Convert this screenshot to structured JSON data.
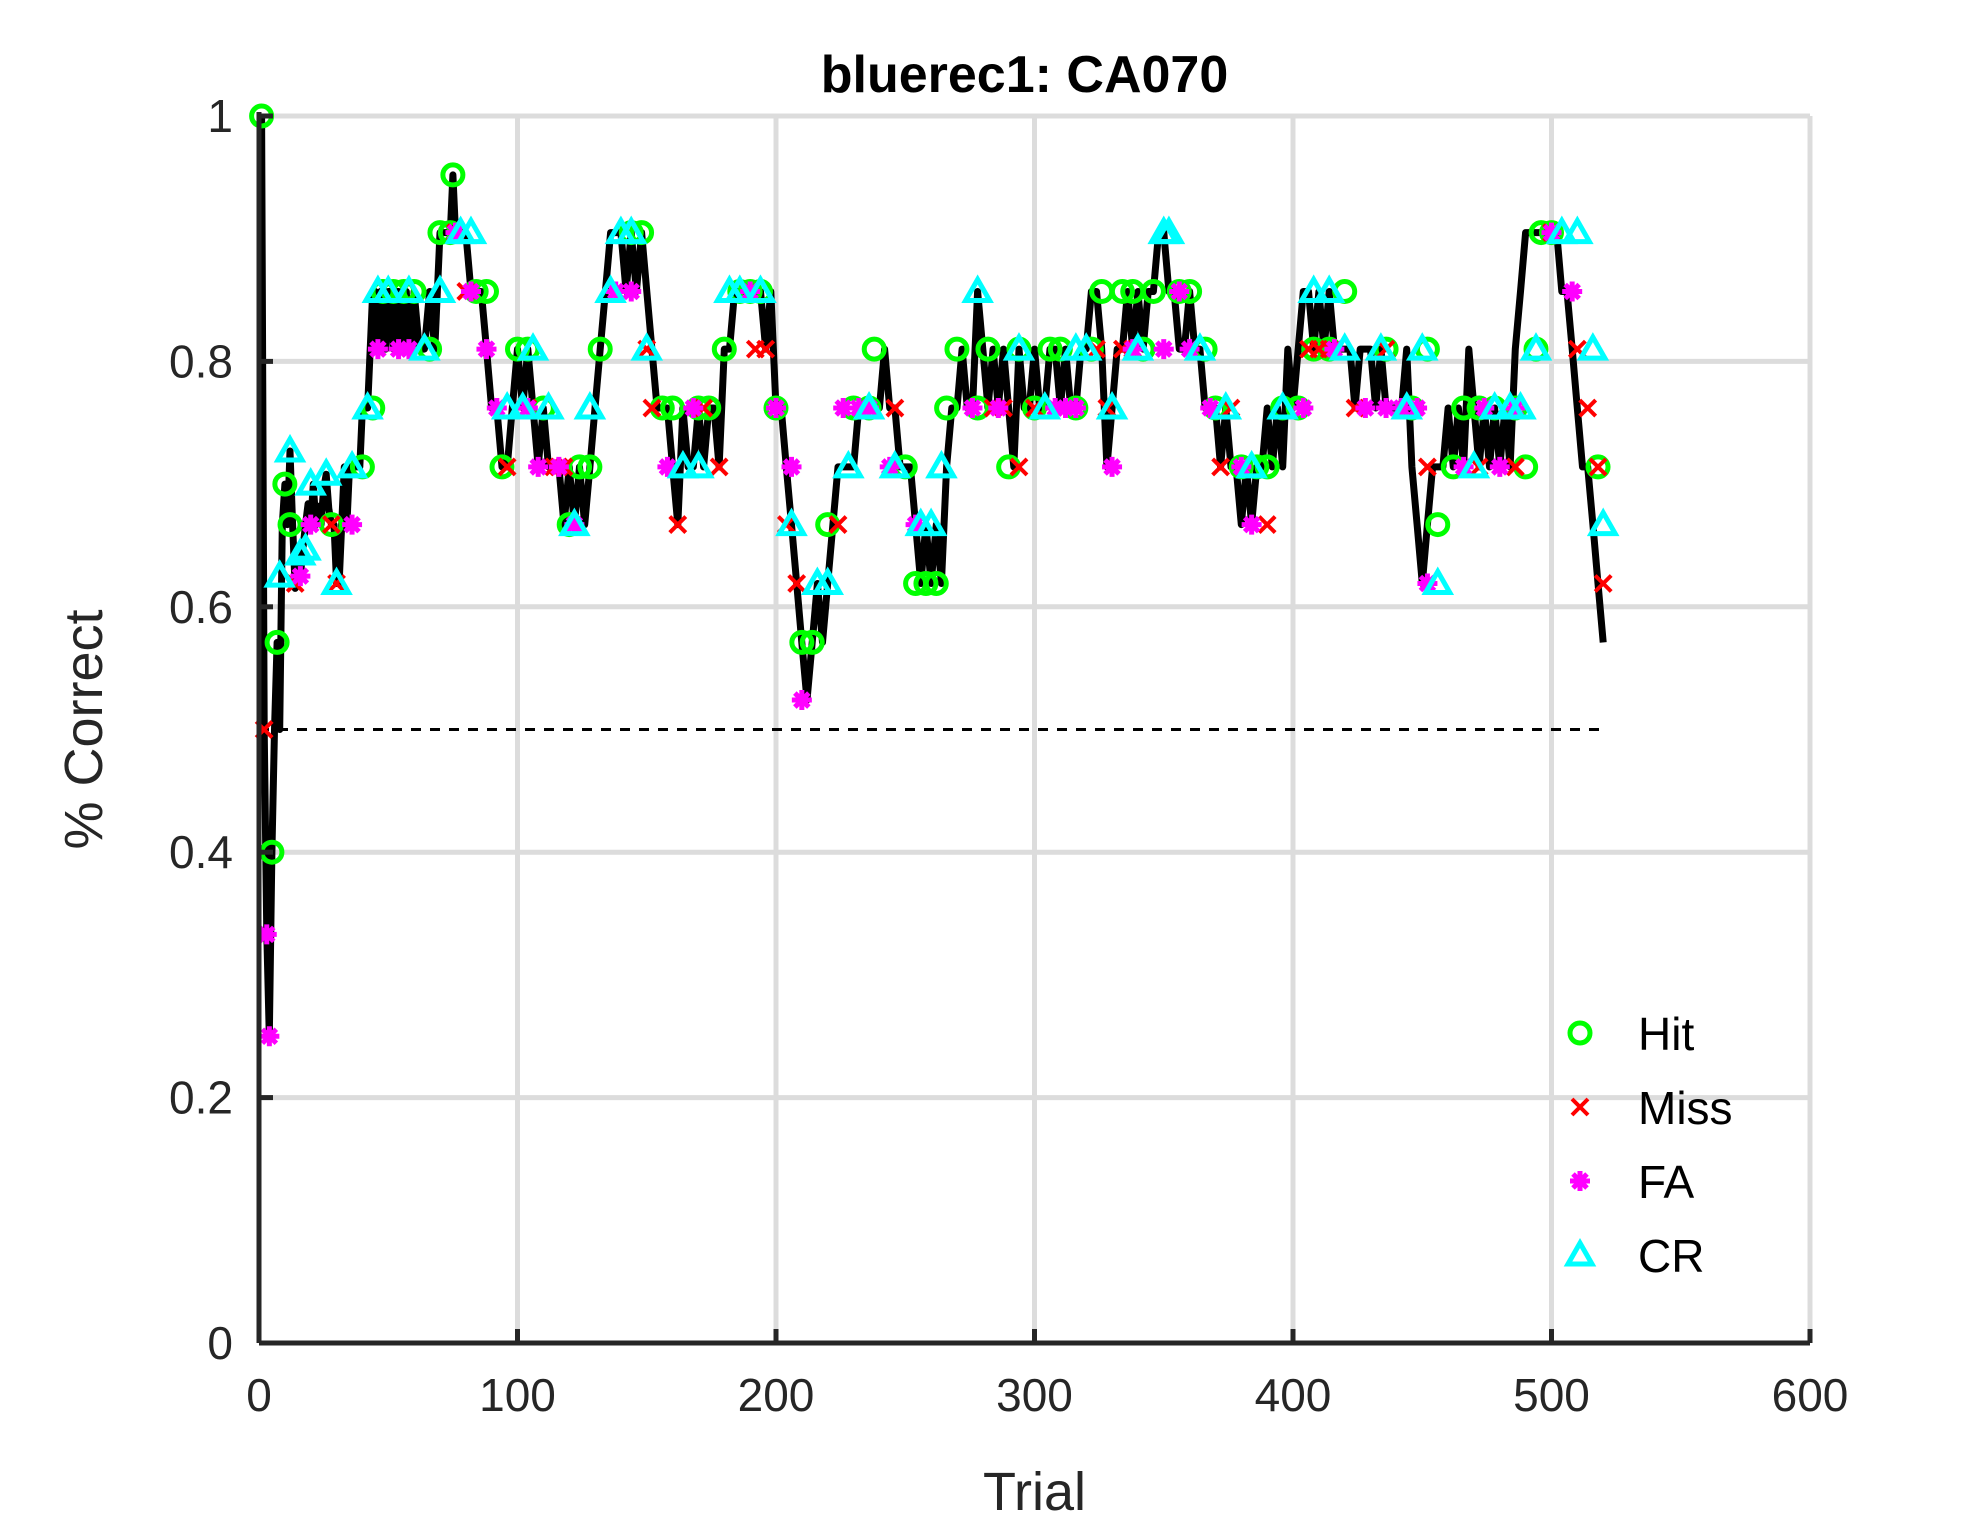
{
  "chart_data": {
    "type": "line",
    "title": "bluerec1: CA070",
    "xlabel": "Trial",
    "ylabel": "% Correct",
    "xlim": [
      0,
      600
    ],
    "ylim": [
      0,
      1
    ],
    "xticks": [
      "0",
      "100",
      "200",
      "300",
      "400",
      "500",
      "600"
    ],
    "yticks": [
      "0",
      "0.2",
      "0.4",
      "0.6",
      "0.8",
      "1"
    ],
    "grid": true,
    "legend_position": "bottom-right",
    "reference_line": {
      "y": 0.5,
      "x": [
        0,
        520
      ],
      "style": "dashed",
      "color": "#000000"
    },
    "line_color": "#000000",
    "line": {
      "x": [
        1,
        2,
        3,
        4,
        5,
        6,
        7,
        8,
        9,
        10,
        11,
        12,
        13,
        14,
        15,
        16,
        17,
        18,
        19,
        20,
        21,
        22,
        23,
        24,
        25,
        26,
        27,
        28,
        29,
        30,
        31,
        32,
        33,
        34,
        35,
        36,
        37,
        38,
        39,
        40,
        41,
        42,
        43,
        44,
        45,
        46,
        47,
        48,
        49,
        50,
        51,
        52,
        53,
        54,
        55,
        56,
        57,
        58,
        59,
        60,
        62,
        64,
        66,
        68,
        70,
        72,
        74,
        75,
        76,
        78,
        80,
        82,
        84,
        86,
        88,
        90,
        92,
        94,
        96,
        98,
        100,
        102,
        104,
        106,
        108,
        110,
        112,
        114,
        116,
        118,
        120,
        122,
        124,
        126,
        128,
        130,
        132,
        134,
        136,
        138,
        140,
        142,
        144,
        146,
        148,
        150,
        152,
        154,
        156,
        158,
        160,
        162,
        164,
        166,
        168,
        170,
        172,
        174,
        176,
        178,
        180,
        182,
        184,
        186,
        188,
        190,
        192,
        194,
        196,
        198,
        200,
        202,
        204,
        206,
        208,
        210,
        212,
        214,
        216,
        218,
        220,
        222,
        224,
        226,
        228,
        230,
        232,
        234,
        236,
        238,
        240,
        242,
        244,
        246,
        248,
        250,
        252,
        254,
        256,
        258,
        260,
        262,
        264,
        266,
        268,
        270,
        272,
        274,
        276,
        278,
        280,
        282,
        284,
        286,
        288,
        290,
        292,
        294,
        296,
        298,
        300,
        302,
        304,
        306,
        308,
        310,
        312,
        314,
        316,
        318,
        320,
        322,
        324,
        326,
        328,
        330,
        332,
        334,
        336,
        338,
        340,
        342,
        344,
        346,
        348,
        350,
        352,
        354,
        356,
        358,
        360,
        362,
        364,
        366,
        368,
        370,
        372,
        374,
        376,
        378,
        380,
        382,
        384,
        386,
        388,
        390,
        392,
        394,
        396,
        398,
        400,
        402,
        404,
        406,
        408,
        410,
        412,
        414,
        416,
        418,
        420,
        422,
        424,
        426,
        428,
        430,
        432,
        434,
        436,
        438,
        440,
        442,
        444,
        446,
        448,
        450,
        452,
        454,
        456,
        458,
        460,
        462,
        464,
        466,
        468,
        470,
        472,
        474,
        476,
        478,
        480,
        482,
        484,
        486,
        488,
        490,
        492,
        494,
        496,
        498,
        500,
        502,
        504,
        506,
        508,
        510,
        512,
        514,
        516,
        518,
        520
      ],
      "y": [
        1.0,
        0.5,
        0.333,
        0.25,
        0.4,
        0.5,
        0.571,
        0.5,
        0.667,
        0.7,
        0.667,
        0.727,
        0.667,
        0.615,
        0.643,
        0.625,
        0.647,
        0.667,
        0.684,
        0.667,
        0.7,
        0.667,
        0.682,
        0.667,
        0.696,
        0.708,
        0.68,
        0.667,
        0.667,
        0.619,
        0.619,
        0.667,
        0.714,
        0.667,
        0.714,
        0.714,
        0.714,
        0.714,
        0.714,
        0.762,
        0.762,
        0.762,
        0.81,
        0.857,
        0.857,
        0.81,
        0.857,
        0.857,
        0.81,
        0.857,
        0.857,
        0.81,
        0.857,
        0.857,
        0.81,
        0.857,
        0.857,
        0.81,
        0.81,
        0.857,
        0.81,
        0.81,
        0.857,
        0.81,
        0.905,
        0.905,
        0.905,
        0.952,
        0.905,
        0.905,
        0.905,
        0.857,
        0.857,
        0.857,
        0.81,
        0.762,
        0.762,
        0.714,
        0.714,
        0.762,
        0.81,
        0.762,
        0.81,
        0.762,
        0.714,
        0.762,
        0.714,
        0.714,
        0.714,
        0.667,
        0.714,
        0.667,
        0.714,
        0.667,
        0.714,
        0.762,
        0.81,
        0.857,
        0.905,
        0.905,
        0.905,
        0.857,
        0.905,
        0.857,
        0.905,
        0.857,
        0.81,
        0.762,
        0.762,
        0.762,
        0.714,
        0.667,
        0.762,
        0.714,
        0.714,
        0.762,
        0.714,
        0.762,
        0.762,
        0.714,
        0.81,
        0.81,
        0.857,
        0.857,
        0.857,
        0.857,
        0.857,
        0.857,
        0.81,
        0.857,
        0.762,
        0.762,
        0.714,
        0.667,
        0.619,
        0.571,
        0.524,
        0.571,
        0.619,
        0.571,
        0.619,
        0.667,
        0.714,
        0.714,
        0.714,
        0.714,
        0.762,
        0.762,
        0.762,
        0.762,
        0.762,
        0.81,
        0.762,
        0.762,
        0.714,
        0.714,
        0.714,
        0.667,
        0.619,
        0.667,
        0.619,
        0.667,
        0.619,
        0.714,
        0.762,
        0.762,
        0.81,
        0.762,
        0.762,
        0.857,
        0.81,
        0.762,
        0.81,
        0.762,
        0.81,
        0.762,
        0.714,
        0.81,
        0.762,
        0.762,
        0.81,
        0.762,
        0.762,
        0.81,
        0.81,
        0.762,
        0.81,
        0.762,
        0.762,
        0.81,
        0.81,
        0.857,
        0.857,
        0.81,
        0.714,
        0.762,
        0.81,
        0.81,
        0.857,
        0.81,
        0.857,
        0.81,
        0.857,
        0.857,
        0.905,
        0.905,
        0.857,
        0.857,
        0.81,
        0.81,
        0.857,
        0.81,
        0.81,
        0.762,
        0.762,
        0.762,
        0.714,
        0.762,
        0.714,
        0.714,
        0.667,
        0.714,
        0.667,
        0.714,
        0.714,
        0.762,
        0.714,
        0.762,
        0.714,
        0.81,
        0.762,
        0.81,
        0.857,
        0.857,
        0.81,
        0.857,
        0.81,
        0.857,
        0.81,
        0.81,
        0.81,
        0.81,
        0.762,
        0.81,
        0.81,
        0.81,
        0.762,
        0.81,
        0.762,
        0.762,
        0.762,
        0.762,
        0.81,
        0.714,
        0.667,
        0.619,
        0.667,
        0.714,
        0.714,
        0.714,
        0.762,
        0.714,
        0.762,
        0.714,
        0.81,
        0.762,
        0.714,
        0.762,
        0.714,
        0.762,
        0.714,
        0.762,
        0.714,
        0.81,
        0.857,
        0.905,
        0.905,
        0.905,
        0.905,
        0.905,
        0.905,
        0.905,
        0.857,
        0.857,
        0.81,
        0.762,
        0.714,
        0.714,
        0.667,
        0.619,
        0.571
      ]
    },
    "series": [
      {
        "name": "Hit",
        "marker": "circle",
        "color": "#00ff00",
        "x": [
          1,
          5,
          7,
          10,
          12,
          28,
          40,
          44,
          48,
          52,
          56,
          60,
          66,
          70,
          74,
          75,
          84,
          88,
          94,
          100,
          104,
          110,
          120,
          124,
          128,
          132,
          144,
          148,
          156,
          160,
          170,
          174,
          180,
          186,
          190,
          194,
          200,
          210,
          214,
          220,
          230,
          236,
          238,
          250,
          254,
          258,
          262,
          266,
          270,
          278,
          282,
          290,
          294,
          300,
          306,
          310,
          316,
          322,
          326,
          334,
          338,
          342,
          346,
          356,
          360,
          366,
          370,
          380,
          386,
          390,
          396,
          402,
          408,
          414,
          420,
          436,
          446,
          452,
          456,
          462,
          466,
          472,
          478,
          486,
          490,
          494,
          496,
          500,
          518
        ],
        "y": [
          1.0,
          0.4,
          0.571,
          0.7,
          0.667,
          0.667,
          0.714,
          0.762,
          0.857,
          0.857,
          0.857,
          0.857,
          0.81,
          0.905,
          0.905,
          0.952,
          0.857,
          0.857,
          0.714,
          0.81,
          0.81,
          0.762,
          0.667,
          0.714,
          0.714,
          0.81,
          0.905,
          0.905,
          0.762,
          0.762,
          0.762,
          0.762,
          0.81,
          0.857,
          0.857,
          0.857,
          0.762,
          0.571,
          0.571,
          0.667,
          0.762,
          0.762,
          0.81,
          0.714,
          0.619,
          0.619,
          0.619,
          0.762,
          0.81,
          0.762,
          0.81,
          0.714,
          0.81,
          0.762,
          0.81,
          0.81,
          0.762,
          0.81,
          0.857,
          0.857,
          0.857,
          0.81,
          0.857,
          0.857,
          0.857,
          0.81,
          0.762,
          0.714,
          0.714,
          0.714,
          0.762,
          0.762,
          0.81,
          0.81,
          0.857,
          0.81,
          0.762,
          0.81,
          0.667,
          0.714,
          0.762,
          0.762,
          0.762,
          0.762,
          0.714,
          0.81,
          0.905,
          0.905,
          0.714
        ]
      },
      {
        "name": "Miss",
        "marker": "x",
        "color": "#ff0000",
        "x": [
          2,
          14,
          28,
          30,
          76,
          80,
          96,
          104,
          114,
          116,
          118,
          150,
          152,
          162,
          172,
          178,
          192,
          196,
          204,
          208,
          224,
          246,
          284,
          288,
          294,
          300,
          324,
          328,
          334,
          338,
          372,
          376,
          390,
          406,
          410,
          414,
          424,
          436,
          452,
          472,
          486,
          500,
          510,
          514,
          518,
          520
        ],
        "y": [
          0.5,
          0.619,
          0.667,
          0.619,
          0.905,
          0.857,
          0.714,
          0.762,
          0.714,
          0.714,
          0.714,
          0.81,
          0.762,
          0.667,
          0.762,
          0.714,
          0.81,
          0.81,
          0.667,
          0.619,
          0.667,
          0.762,
          0.762,
          0.762,
          0.714,
          0.762,
          0.81,
          0.762,
          0.81,
          0.81,
          0.714,
          0.762,
          0.667,
          0.81,
          0.81,
          0.81,
          0.762,
          0.81,
          0.714,
          0.714,
          0.714,
          0.905,
          0.81,
          0.762,
          0.714,
          0.619
        ]
      },
      {
        "name": "FA",
        "marker": "asterisk",
        "color": "#ff00ff",
        "x": [
          3,
          4,
          16,
          20,
          36,
          46,
          54,
          58,
          76,
          82,
          88,
          92,
          104,
          108,
          116,
          122,
          138,
          144,
          158,
          168,
          190,
          200,
          206,
          210,
          226,
          232,
          236,
          244,
          254,
          276,
          286,
          308,
          312,
          316,
          330,
          338,
          350,
          356,
          360,
          368,
          380,
          384,
          404,
          416,
          428,
          436,
          442,
          448,
          452,
          466,
          474,
          480,
          486,
          500,
          508
        ],
        "y": [
          0.333,
          0.25,
          0.625,
          0.667,
          0.667,
          0.81,
          0.81,
          0.81,
          0.905,
          0.857,
          0.81,
          0.762,
          0.762,
          0.714,
          0.714,
          0.667,
          0.857,
          0.857,
          0.714,
          0.762,
          0.857,
          0.762,
          0.714,
          0.524,
          0.762,
          0.762,
          0.762,
          0.714,
          0.667,
          0.762,
          0.762,
          0.762,
          0.762,
          0.762,
          0.714,
          0.81,
          0.81,
          0.857,
          0.81,
          0.762,
          0.714,
          0.667,
          0.762,
          0.81,
          0.762,
          0.762,
          0.762,
          0.762,
          0.619,
          0.714,
          0.762,
          0.714,
          0.762,
          0.905,
          0.857
        ]
      },
      {
        "name": "CR",
        "marker": "triangle",
        "color": "#00ffff",
        "x": [
          8,
          12,
          16,
          18,
          20,
          26,
          30,
          36,
          42,
          46,
          50,
          58,
          64,
          70,
          78,
          82,
          96,
          102,
          106,
          112,
          122,
          128,
          136,
          140,
          144,
          150,
          164,
          170,
          182,
          186,
          194,
          206,
          216,
          220,
          228,
          236,
          246,
          256,
          260,
          264,
          278,
          294,
          304,
          316,
          320,
          330,
          340,
          350,
          352,
          364,
          374,
          384,
          396,
          408,
          414,
          420,
          434,
          444,
          450,
          456,
          470,
          478,
          484,
          488,
          494,
          504,
          510,
          516,
          520
        ],
        "y": [
          0.625,
          0.727,
          0.643,
          0.647,
          0.7,
          0.708,
          0.619,
          0.714,
          0.762,
          0.857,
          0.857,
          0.857,
          0.81,
          0.857,
          0.905,
          0.905,
          0.762,
          0.762,
          0.81,
          0.762,
          0.667,
          0.762,
          0.857,
          0.905,
          0.905,
          0.81,
          0.714,
          0.714,
          0.857,
          0.857,
          0.857,
          0.667,
          0.619,
          0.619,
          0.714,
          0.762,
          0.714,
          0.667,
          0.667,
          0.714,
          0.857,
          0.81,
          0.762,
          0.81,
          0.81,
          0.762,
          0.81,
          0.905,
          0.905,
          0.81,
          0.762,
          0.714,
          0.762,
          0.857,
          0.857,
          0.81,
          0.81,
          0.762,
          0.81,
          0.619,
          0.714,
          0.762,
          0.762,
          0.762,
          0.81,
          0.905,
          0.905,
          0.81,
          0.667
        ]
      }
    ]
  }
}
